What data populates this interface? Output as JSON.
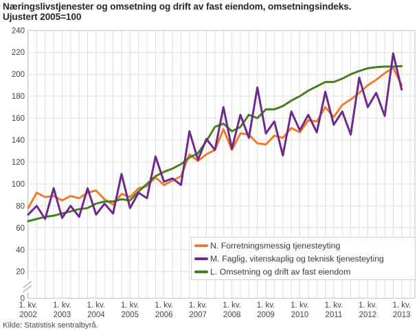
{
  "title": {
    "line1": "Næringslivstjenester og omsetning og drift av fast eiendom, omsetningsindeks.",
    "line2": "Ujustert 2005=100"
  },
  "source": "Kilde: Statistisk sentralbyrå.",
  "colors": {
    "orange": "#ee7d2b",
    "purple": "#6e2a8b",
    "green": "#45801f",
    "grid": "#dcdcdc",
    "plot_border": "#c3c3c3",
    "tick_text": "#454545",
    "title_text": "#262626"
  },
  "legend": {
    "position": "bottom-right-inside"
  },
  "chart_data": {
    "type": "line",
    "title": "Næringslivstjenester og omsetning og drift av fast eiendom, omsetningsindeks. Ujustert 2005=100",
    "x_unit": "quarter",
    "n_points": 45,
    "x_range": "1. kv. 2002 – 1. kv. 2013",
    "x_tick_labels": [
      {
        "line1": "1. kv.",
        "line2": "2002"
      },
      {
        "line1": "1. kv.",
        "line2": "2003"
      },
      {
        "line1": "1. kv.",
        "line2": "2004"
      },
      {
        "line1": "1. kv.",
        "line2": "2005"
      },
      {
        "line1": "1. kv.",
        "line2": "2006"
      },
      {
        "line1": "1. kv.",
        "line2": "2007"
      },
      {
        "line1": "1. kv.",
        "line2": "2008"
      },
      {
        "line1": "1. kv.",
        "line2": "2009"
      },
      {
        "line1": "1. kv.",
        "line2": "2010"
      },
      {
        "line1": "1. kv.",
        "line2": "2011"
      },
      {
        "line1": "1. kv.",
        "line2": "2012"
      },
      {
        "line1": "1. kv.",
        "line2": "2013"
      }
    ],
    "y_axis": {
      "min": 0,
      "max": 240,
      "step": 20,
      "break_between": [
        0,
        20
      ]
    },
    "grid": "both",
    "legend_position": "bottom-right-inside",
    "series": [
      {
        "name": "N. Forretningsmessig tjenesteyting",
        "color": "#ee7d2b",
        "values": [
          78,
          92,
          88,
          89,
          85,
          89,
          87,
          92,
          94,
          86,
          81,
          91,
          88,
          96,
          98,
          106,
          99,
          103,
          107,
          127,
          121,
          127,
          131,
          150,
          131,
          146,
          145,
          137,
          136,
          144,
          142,
          151,
          147,
          158,
          157,
          170,
          161,
          172,
          177,
          183,
          190,
          195,
          201,
          206,
          190
        ]
      },
      {
        "name": "M. Faglig, vitenskaplig og teknisk tjenesteyting",
        "color": "#6e2a8b",
        "values": [
          72,
          80,
          68,
          96,
          69,
          80,
          70,
          96,
          72,
          82,
          73,
          109,
          78,
          92,
          87,
          125,
          102,
          105,
          99,
          148,
          122,
          141,
          131,
          170,
          132,
          163,
          142,
          188,
          146,
          157,
          126,
          166,
          149,
          163,
          147,
          184,
          154,
          166,
          145,
          197,
          170,
          183,
          162,
          219,
          186
        ]
      },
      {
        "name": "L. Omsetning og drift av fast eiendom",
        "color": "#45801f",
        "values": [
          66,
          68,
          70,
          71,
          73,
          75,
          77,
          78,
          82,
          84,
          84,
          86,
          85,
          93,
          100,
          107,
          111,
          114,
          118,
          124,
          128,
          139,
          152,
          155,
          148,
          152,
          163,
          160,
          168,
          168,
          171,
          176,
          180,
          185,
          189,
          193,
          193,
          196,
          200,
          203,
          205.5,
          206.5,
          207,
          207,
          207.5
        ]
      }
    ]
  }
}
